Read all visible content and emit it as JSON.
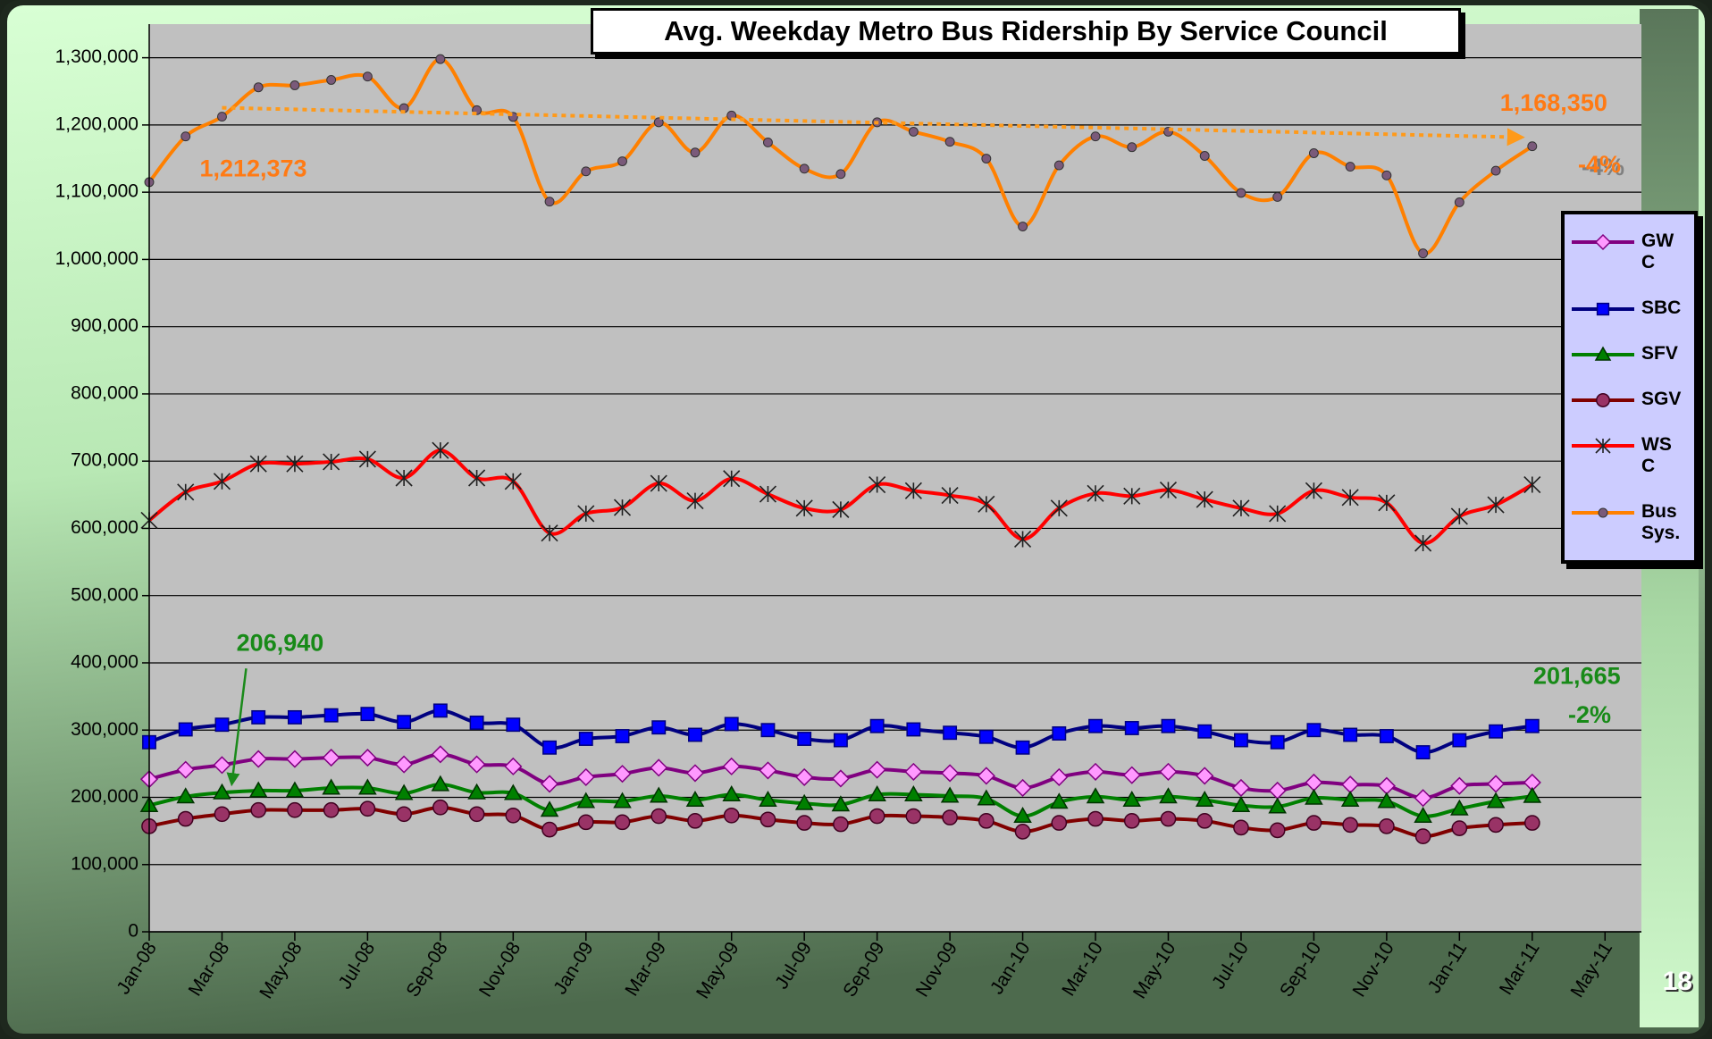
{
  "chart_data": {
    "type": "line",
    "title": "Avg. Weekday Metro Bus Ridership By Service Council",
    "page_number": "18",
    "categories": [
      "Jan-08",
      null,
      "Mar-08",
      null,
      "May-08",
      null,
      "Jul-08",
      null,
      "Sep-08",
      null,
      "Nov-08",
      null,
      "Jan-09",
      null,
      "Mar-09",
      null,
      "May-09",
      null,
      "Jul-09",
      null,
      "Sep-09",
      null,
      "Nov-09",
      null,
      "Jan-10",
      null,
      "Mar-10",
      null,
      "May-10",
      null,
      "Jul-10",
      null,
      "Sep-10",
      null,
      "Nov-10",
      null,
      "Jan-11",
      null,
      "Mar-11",
      null,
      "May-11"
    ],
    "ylim": [
      0,
      1350000
    ],
    "yticks": [
      0,
      {
        "value": 100000,
        "label": "100,000"
      },
      {
        "value": 200000,
        "label": "200,000"
      },
      {
        "value": 300000,
        "label": "300,000"
      },
      {
        "value": 400000,
        "label": "400,000"
      },
      {
        "value": 500000,
        "label": "500,000"
      },
      {
        "value": 600000,
        "label": "600,000"
      },
      {
        "value": 700000,
        "label": "700,000"
      },
      {
        "value": 800000,
        "label": "800,000"
      },
      {
        "value": 900000,
        "label": "900,000"
      },
      {
        "value": 1000000,
        "label": "1,000,000"
      },
      {
        "value": 1100000,
        "label": "1,100,000"
      },
      {
        "value": 1200000,
        "label": "1,200,000"
      },
      {
        "value": 1300000,
        "label": "1,300,000"
      }
    ],
    "grid": true,
    "smooth": true,
    "legend": "right",
    "series": [
      {
        "name": "GWC",
        "color": "#800080",
        "marker": "diamond",
        "marker_color": "#ff99ff",
        "values": [
          227000,
          241000,
          248000,
          257000,
          257000,
          259000,
          259000,
          249000,
          264000,
          249000,
          246000,
          220000,
          230000,
          235000,
          244000,
          236000,
          246000,
          240000,
          230000,
          228000,
          241000,
          238000,
          236000,
          232000,
          214000,
          230000,
          238000,
          233000,
          238000,
          232000,
          214000,
          210000,
          222000,
          219000,
          217000,
          199000,
          217000,
          220000,
          222000,
          null,
          null
        ]
      },
      {
        "name": "SBC",
        "color": "#000080",
        "marker": "square",
        "marker_color": "#0000ff",
        "values": [
          282000,
          301000,
          308000,
          319000,
          319000,
          322000,
          324000,
          312000,
          329000,
          311000,
          308000,
          274000,
          287000,
          291000,
          304000,
          293000,
          309000,
          300000,
          287000,
          285000,
          306000,
          301000,
          296000,
          290000,
          274000,
          295000,
          306000,
          303000,
          306000,
          298000,
          285000,
          282000,
          300000,
          293000,
          291000,
          267000,
          285000,
          298000,
          306000,
          null,
          null
        ]
      },
      {
        "name": "SFV",
        "color": "#008000",
        "marker": "triangle",
        "marker_color": "#008000",
        "values": [
          188000,
          201000,
          206940,
          210000,
          210000,
          214000,
          214000,
          206000,
          219000,
          207000,
          206000,
          181000,
          194000,
          194000,
          202000,
          196000,
          204000,
          196000,
          191000,
          189000,
          204000,
          204000,
          202000,
          198000,
          172000,
          193000,
          201000,
          196000,
          201000,
          196000,
          188000,
          186000,
          199000,
          196000,
          194000,
          172000,
          183000,
          194000,
          201665,
          null,
          null
        ],
        "value_labels": [
          null,
          null,
          "206,940",
          null,
          null,
          null,
          null,
          null,
          null,
          null,
          null,
          null,
          null,
          null,
          null,
          null,
          null,
          null,
          null,
          null,
          null,
          null,
          null,
          null,
          null,
          null,
          null,
          null,
          null,
          null,
          null,
          null,
          null,
          null,
          null,
          null,
          null,
          null,
          "201,665",
          null,
          null
        ]
      },
      {
        "name": "SGV",
        "color": "#800000",
        "marker": "circle",
        "marker_color": "#993366",
        "values": [
          157000,
          168000,
          175000,
          181000,
          181000,
          181000,
          183000,
          175000,
          185000,
          175000,
          173000,
          152000,
          163000,
          163000,
          172000,
          165000,
          173000,
          167000,
          162000,
          160000,
          172000,
          172000,
          170000,
          165000,
          149000,
          162000,
          168000,
          165000,
          168000,
          165000,
          155000,
          151000,
          162000,
          159000,
          157000,
          142000,
          154000,
          159000,
          162000,
          null,
          null
        ]
      },
      {
        "name": "WSC",
        "color": "#ff0000",
        "marker": "star",
        "marker_color": "#202020",
        "values": [
          612000,
          654000,
          670000,
          696000,
          696000,
          699000,
          703000,
          675000,
          716000,
          675000,
          670000,
          593000,
          622000,
          631000,
          667000,
          641000,
          674000,
          651000,
          630000,
          628000,
          665000,
          656000,
          649000,
          636000,
          584000,
          630000,
          652000,
          648000,
          657000,
          643000,
          630000,
          622000,
          656000,
          646000,
          638000,
          578000,
          618000,
          635000,
          665000,
          null,
          null
        ]
      },
      {
        "name": "Bus Sys.",
        "color": "#ff8000",
        "marker": "dot",
        "marker_color": "#7a5a7a",
        "values": [
          1115000,
          1183000,
          1212373,
          1256000,
          1259000,
          1267000,
          1272000,
          1225000,
          1298000,
          1222000,
          1212000,
          1086000,
          1131000,
          1146000,
          1204000,
          1159000,
          1214000,
          1174000,
          1135000,
          1127000,
          1204000,
          1190000,
          1175000,
          1150000,
          1049000,
          1140000,
          1183000,
          1167000,
          1190000,
          1154000,
          1099000,
          1093000,
          1158000,
          1138000,
          1125000,
          1009000,
          1085000,
          1132000,
          1168350,
          null,
          null
        ],
        "value_labels": [
          null,
          null,
          "1,212,373",
          null,
          null,
          null,
          null,
          null,
          null,
          null,
          null,
          null,
          null,
          null,
          null,
          null,
          null,
          null,
          null,
          null,
          null,
          null,
          null,
          null,
          null,
          null,
          null,
          null,
          null,
          null,
          null,
          null,
          null,
          null,
          null,
          null,
          null,
          null,
          "1,168,350",
          null,
          null
        ]
      }
    ],
    "annotations": [
      "-4%",
      "-2%"
    ]
  }
}
